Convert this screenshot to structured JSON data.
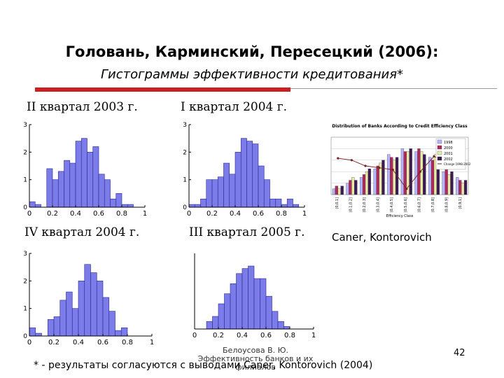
{
  "slide": {
    "title": "Головань, Карминский, Пересецкий (2006):",
    "subtitle": "Гистограммы эффективности кредитования*",
    "captions": {
      "q2_2003": "II квартал 2003 г.",
      "q1_2004": "I квартал 2004 г.",
      "q4_2004": "IV квартал 2004 г.",
      "q3_2005": "III квартал 2005 г.",
      "caner": "Caner, Kontorovich"
    },
    "footer": {
      "author": "Белоусова В. Ю. Эффективность банков и их филиалов",
      "note": "* - результаты согласуются с выводами Caner, Kontorovich (2004)",
      "page": "42"
    },
    "colors": {
      "bar": "#7b7bea",
      "accent_rule": "#cc1f1f"
    }
  },
  "chart_data": [
    {
      "type": "bar",
      "title": "",
      "x_ticks": [
        "0",
        "0.2",
        "0.4",
        "0.6",
        "0.8",
        "1"
      ],
      "y_ticks": [
        "0",
        "1",
        "2",
        "3"
      ],
      "xlim": [
        0,
        1
      ],
      "ylim": [
        0,
        3
      ],
      "bin_start": 0.0,
      "bin_width": 0.05,
      "values": [
        0.2,
        0.1,
        0,
        1.4,
        1.0,
        1.3,
        1.7,
        1.6,
        2.4,
        2.5,
        2.0,
        2.2,
        1.2,
        1.0,
        0.3,
        0.5,
        0.1,
        0.1,
        0,
        0
      ]
    },
    {
      "type": "bar",
      "title": "",
      "x_ticks": [
        "0",
        "0.2",
        "0.4",
        "0.6",
        "0.8",
        "1"
      ],
      "y_ticks": [
        "0",
        "1",
        "2",
        "3"
      ],
      "xlim": [
        0,
        1
      ],
      "ylim": [
        0,
        3
      ],
      "bin_start": 0.0,
      "bin_width": 0.05,
      "values": [
        0.1,
        0.1,
        0.3,
        1.0,
        1.0,
        1.1,
        1.6,
        1.2,
        2.0,
        2.5,
        2.4,
        2.3,
        1.5,
        1.0,
        0.3,
        0.3,
        0.1,
        0.3,
        0.1,
        0
      ]
    },
    {
      "type": "bar",
      "title": "",
      "x_ticks": [
        "0",
        "0.2",
        "0.4",
        "0.6",
        "0.8",
        "1"
      ],
      "y_ticks": [
        "0",
        "1",
        "2",
        "3"
      ],
      "xlim": [
        0,
        1
      ],
      "ylim": [
        0,
        3
      ],
      "bin_start": 0.0,
      "bin_width": 0.05,
      "values": [
        0.3,
        0.1,
        0,
        0.6,
        0.7,
        1.3,
        1.6,
        1.0,
        2.0,
        2.6,
        2.3,
        2.0,
        1.4,
        0.9,
        0.2,
        0.3,
        0,
        0,
        0,
        0
      ]
    },
    {
      "type": "bar",
      "title": "",
      "x_ticks": [
        "0",
        "0.2",
        "0.4",
        "0.6",
        "0.8",
        "1"
      ],
      "y_ticks": [],
      "xlim": [
        0,
        1
      ],
      "ylim": [
        0,
        3
      ],
      "bin_start": 0.0,
      "bin_width": 0.05,
      "values": [
        0,
        0,
        0.3,
        0.5,
        1.0,
        1.4,
        1.8,
        2.2,
        2.4,
        2.5,
        2.0,
        2.0,
        1.3,
        0.7,
        0.3,
        0.1,
        0,
        0,
        0,
        0
      ]
    },
    {
      "type": "bar",
      "title": "Distribution of Banks According to Credit Efficiency Class",
      "categories": [
        "(0,0.1]",
        "(0.1,0.2]",
        "(0.2,0.3]",
        "(0.3,0.4]",
        "(0.4,0.5]",
        "(0.5,0.6]",
        "(0.6,0.7]",
        "(0.7,0.8]",
        "(0.8,0.9]",
        "(0.9,1]"
      ],
      "xlabel": "Efficiency Class",
      "series": [
        {
          "name": "1998",
          "color": "#b5b5ff",
          "values": [
            2,
            4,
            6,
            9,
            14,
            16,
            15,
            13,
            8,
            6
          ]
        },
        {
          "name": "2000",
          "color": "#b2285a",
          "values": [
            3,
            5,
            7,
            10,
            13,
            15,
            16,
            12,
            9,
            5
          ]
        },
        {
          "name": "2001",
          "color": "#e9e9a8",
          "values": [
            2,
            6,
            8,
            11,
            12,
            15,
            15,
            14,
            7,
            4
          ]
        },
        {
          "name": "2002",
          "color": "#3c1a55",
          "values": [
            3,
            5,
            9,
            12,
            13,
            16,
            14,
            12,
            8,
            5
          ]
        }
      ],
      "line_series": {
        "name": "Change 1998-2002",
        "values": [
          8,
          6,
          0,
          -2,
          -4,
          -24,
          -6,
          10,
          2,
          -2
        ]
      },
      "ylim": [
        0,
        20
      ]
    }
  ]
}
